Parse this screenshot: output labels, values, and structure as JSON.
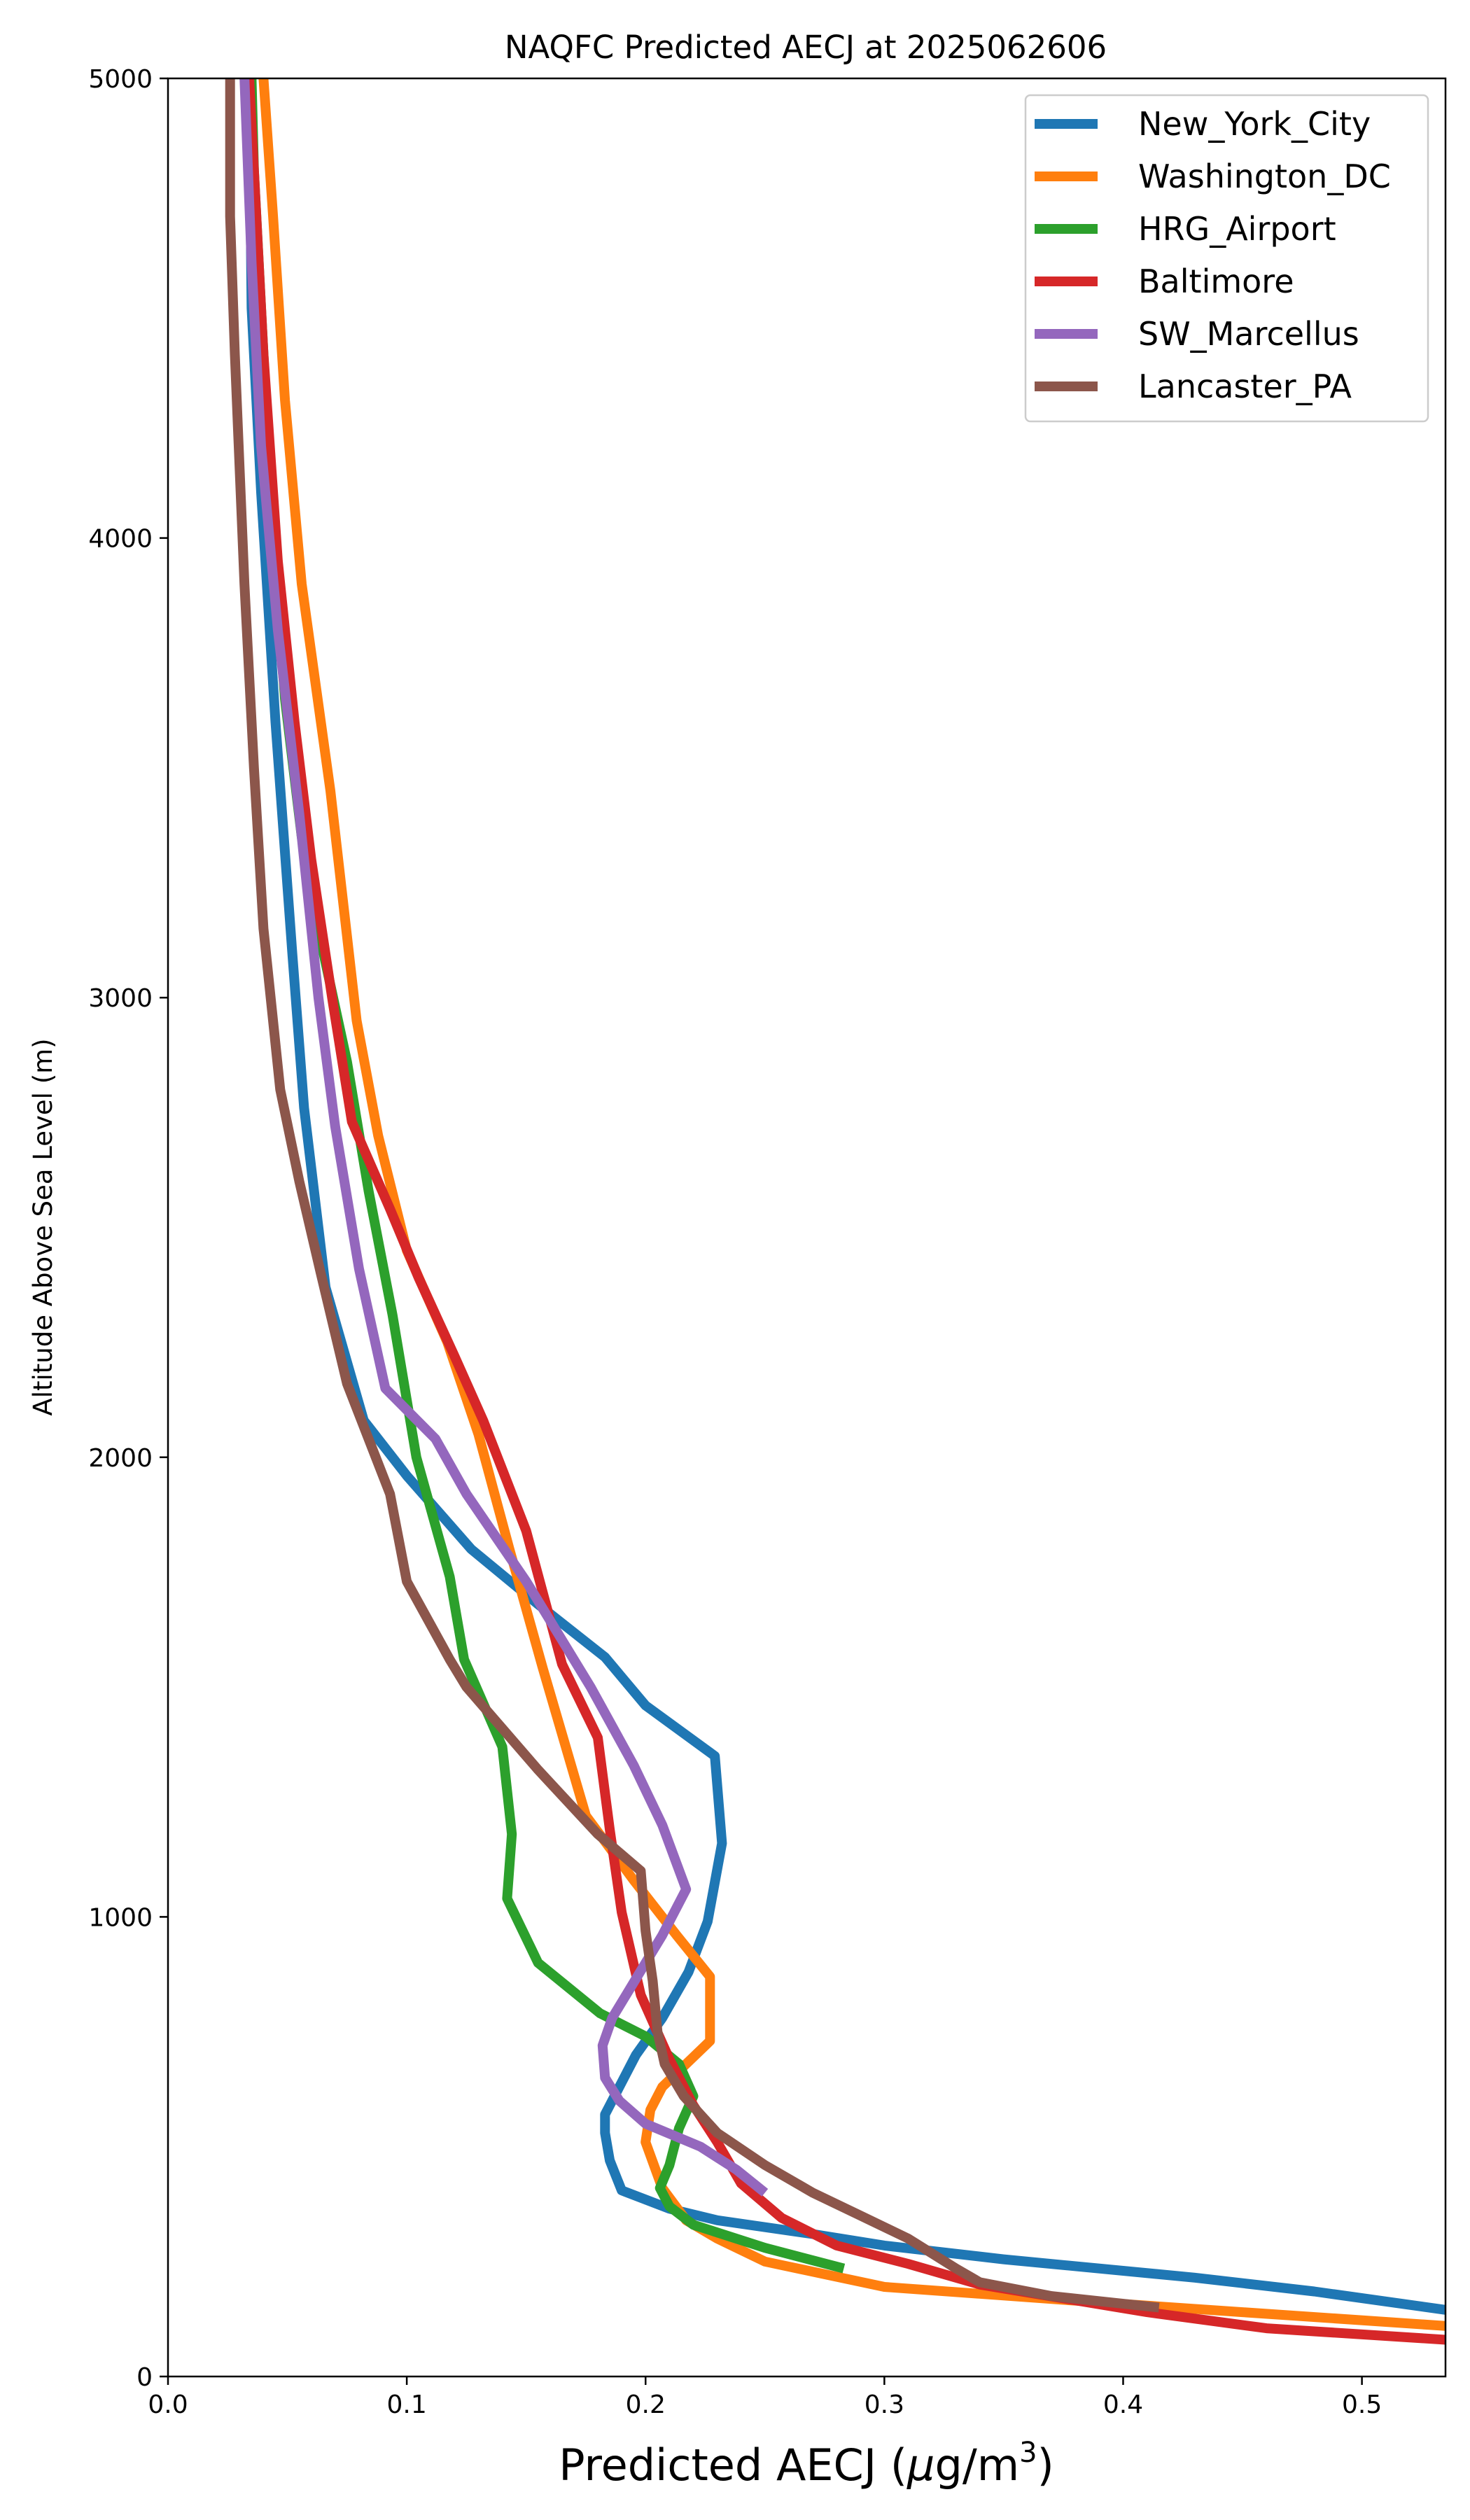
{
  "chart_data": {
    "type": "line",
    "title": "NAQFC Predicted AECJ at 2025062606",
    "xlabel_main": "Predicted AECJ (",
    "xlabel_mu": "μ",
    "xlabel_unit": "g/m",
    "xlabel_sup": "3",
    "xlabel_close": ")",
    "ylabel": "Altitude Above Sea Level (m)",
    "xlim": [
      0.0,
      0.535
    ],
    "ylim": [
      0,
      5000
    ],
    "x_ticks": [
      0.0,
      0.1,
      0.2,
      0.3,
      0.4,
      0.5
    ],
    "x_tick_labels": [
      "0.0",
      "0.1",
      "0.2",
      "0.3",
      "0.4",
      "0.5"
    ],
    "y_ticks": [
      0,
      1000,
      2000,
      3000,
      4000,
      5000
    ],
    "y_tick_labels": [
      "0",
      "1000",
      "2000",
      "3000",
      "4000",
      "5000"
    ],
    "grid": false,
    "legend_position": "top-right",
    "series": [
      {
        "name": "New_York_City",
        "color": "#1f77b4",
        "points": [
          [
            0.535,
            145
          ],
          [
            0.48,
            185
          ],
          [
            0.43,
            215
          ],
          [
            0.35,
            255
          ],
          [
            0.3,
            285
          ],
          [
            0.27,
            310
          ],
          [
            0.23,
            340
          ],
          [
            0.21,
            365
          ],
          [
            0.19,
            405
          ],
          [
            0.185,
            470
          ],
          [
            0.183,
            530
          ],
          [
            0.183,
            570
          ],
          [
            0.19,
            640
          ],
          [
            0.196,
            700
          ],
          [
            0.207,
            780
          ],
          [
            0.218,
            880
          ],
          [
            0.226,
            990
          ],
          [
            0.232,
            1160
          ],
          [
            0.229,
            1350
          ],
          [
            0.2,
            1460
          ],
          [
            0.183,
            1565
          ],
          [
            0.155,
            1680
          ],
          [
            0.127,
            1800
          ],
          [
            0.1,
            1960
          ],
          [
            0.082,
            2080
          ],
          [
            0.066,
            2370
          ],
          [
            0.057,
            2760
          ],
          [
            0.052,
            3100
          ],
          [
            0.045,
            3600
          ],
          [
            0.039,
            4100
          ],
          [
            0.035,
            4500
          ],
          [
            0.034,
            5000
          ]
        ]
      },
      {
        "name": "Washington_DC",
        "color": "#ff7f0e",
        "points": [
          [
            0.535,
            110
          ],
          [
            0.45,
            140
          ],
          [
            0.38,
            165
          ],
          [
            0.3,
            195
          ],
          [
            0.25,
            250
          ],
          [
            0.23,
            300
          ],
          [
            0.217,
            340
          ],
          [
            0.207,
            410
          ],
          [
            0.2,
            510
          ],
          [
            0.202,
            580
          ],
          [
            0.207,
            630
          ],
          [
            0.227,
            730
          ],
          [
            0.227,
            870
          ],
          [
            0.213,
            960
          ],
          [
            0.195,
            1080
          ],
          [
            0.175,
            1220
          ],
          [
            0.157,
            1540
          ],
          [
            0.143,
            1800
          ],
          [
            0.13,
            2050
          ],
          [
            0.117,
            2250
          ],
          [
            0.1,
            2450
          ],
          [
            0.088,
            2700
          ],
          [
            0.079,
            2950
          ],
          [
            0.068,
            3450
          ],
          [
            0.056,
            3900
          ],
          [
            0.049,
            4300
          ],
          [
            0.044,
            4700
          ],
          [
            0.04,
            5000
          ]
        ]
      },
      {
        "name": "HRG_Airport",
        "color": "#2ca02c",
        "points": [
          [
            0.283,
            235
          ],
          [
            0.25,
            280
          ],
          [
            0.22,
            330
          ],
          [
            0.21,
            370
          ],
          [
            0.206,
            410
          ],
          [
            0.21,
            460
          ],
          [
            0.214,
            540
          ],
          [
            0.22,
            610
          ],
          [
            0.214,
            680
          ],
          [
            0.2,
            740
          ],
          [
            0.181,
            790
          ],
          [
            0.155,
            900
          ],
          [
            0.142,
            1040
          ],
          [
            0.144,
            1180
          ],
          [
            0.14,
            1370
          ],
          [
            0.124,
            1560
          ],
          [
            0.118,
            1740
          ],
          [
            0.104,
            2000
          ],
          [
            0.094,
            2310
          ],
          [
            0.084,
            2580
          ],
          [
            0.075,
            2860
          ],
          [
            0.065,
            3100
          ],
          [
            0.056,
            3350
          ],
          [
            0.049,
            3650
          ],
          [
            0.044,
            4000
          ],
          [
            0.04,
            4400
          ],
          [
            0.036,
            4800
          ],
          [
            0.035,
            5000
          ]
        ]
      },
      {
        "name": "Baltimore",
        "color": "#d62728",
        "points": [
          [
            0.535,
            80
          ],
          [
            0.46,
            105
          ],
          [
            0.41,
            140
          ],
          [
            0.34,
            200
          ],
          [
            0.31,
            245
          ],
          [
            0.28,
            285
          ],
          [
            0.257,
            345
          ],
          [
            0.24,
            420
          ],
          [
            0.23,
            510
          ],
          [
            0.22,
            590
          ],
          [
            0.21,
            690
          ],
          [
            0.198,
            830
          ],
          [
            0.19,
            1010
          ],
          [
            0.185,
            1190
          ],
          [
            0.18,
            1390
          ],
          [
            0.165,
            1550
          ],
          [
            0.15,
            1840
          ],
          [
            0.132,
            2080
          ],
          [
            0.12,
            2220
          ],
          [
            0.105,
            2390
          ],
          [
            0.093,
            2540
          ],
          [
            0.077,
            2730
          ],
          [
            0.069,
            2990
          ],
          [
            0.06,
            3300
          ],
          [
            0.053,
            3600
          ],
          [
            0.046,
            3950
          ],
          [
            0.04,
            4400
          ],
          [
            0.036,
            4800
          ],
          [
            0.034,
            5000
          ]
        ]
      },
      {
        "name": "SW_Marcellus",
        "color": "#9467bd",
        "points": [
          [
            0.25,
            400
          ],
          [
            0.238,
            450
          ],
          [
            0.223,
            500
          ],
          [
            0.2,
            550
          ],
          [
            0.189,
            600
          ],
          [
            0.183,
            650
          ],
          [
            0.182,
            720
          ],
          [
            0.186,
            780
          ],
          [
            0.193,
            840
          ],
          [
            0.2,
            900
          ],
          [
            0.207,
            960
          ],
          [
            0.217,
            1060
          ],
          [
            0.207,
            1200
          ],
          [
            0.195,
            1330
          ],
          [
            0.177,
            1500
          ],
          [
            0.15,
            1730
          ],
          [
            0.125,
            1920
          ],
          [
            0.112,
            2040
          ],
          [
            0.091,
            2150
          ],
          [
            0.08,
            2410
          ],
          [
            0.07,
            2720
          ],
          [
            0.063,
            3000
          ],
          [
            0.055,
            3400
          ],
          [
            0.046,
            3800
          ],
          [
            0.039,
            4200
          ],
          [
            0.035,
            4600
          ],
          [
            0.032,
            5000
          ]
        ]
      },
      {
        "name": "Lancaster_PA",
        "color": "#8c564b",
        "points": [
          [
            0.415,
            150
          ],
          [
            0.37,
            175
          ],
          [
            0.34,
            205
          ],
          [
            0.33,
            235
          ],
          [
            0.31,
            300
          ],
          [
            0.29,
            350
          ],
          [
            0.27,
            400
          ],
          [
            0.25,
            460
          ],
          [
            0.23,
            530
          ],
          [
            0.216,
            610
          ],
          [
            0.208,
            680
          ],
          [
            0.205,
            750
          ],
          [
            0.203,
            860
          ],
          [
            0.2,
            970
          ],
          [
            0.198,
            1100
          ],
          [
            0.18,
            1180
          ],
          [
            0.155,
            1320
          ],
          [
            0.125,
            1500
          ],
          [
            0.118,
            1560
          ],
          [
            0.1,
            1730
          ],
          [
            0.093,
            1920
          ],
          [
            0.075,
            2160
          ],
          [
            0.064,
            2400
          ],
          [
            0.055,
            2600
          ],
          [
            0.047,
            2800
          ],
          [
            0.04,
            3150
          ],
          [
            0.036,
            3500
          ],
          [
            0.032,
            3900
          ],
          [
            0.028,
            4400
          ],
          [
            0.026,
            4700
          ],
          [
            0.026,
            5000
          ]
        ]
      }
    ]
  }
}
